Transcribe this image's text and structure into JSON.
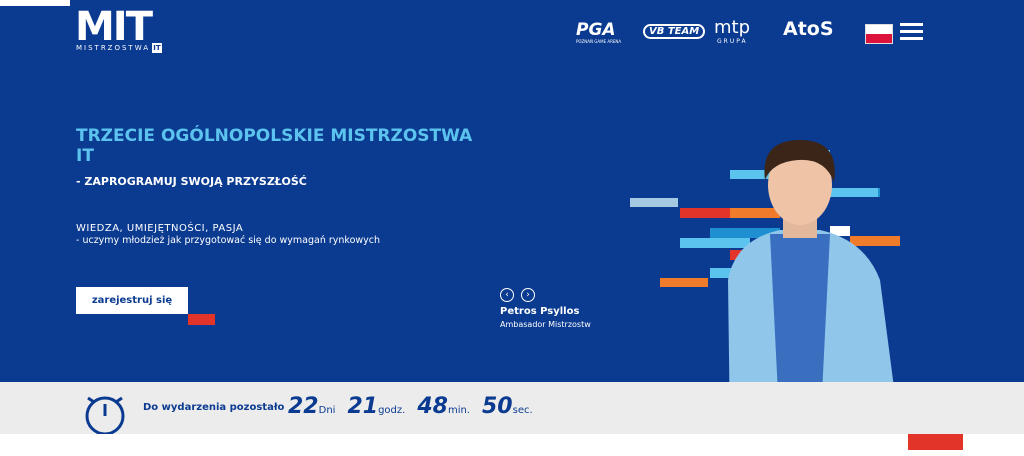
{
  "header": {
    "logo": "MIT",
    "logo_sub": "MISTRZOSTWA",
    "logo_badge": "IT",
    "partners": [
      "PGA",
      "VB TEAM",
      "mtp",
      "AtoS"
    ],
    "partner_subs": [
      "POZNAŃ GAME ARENA",
      "GRUPA"
    ]
  },
  "hero": {
    "title": "TRZECIE OGÓLNOPOLSKIE MISTRZOSTWA IT",
    "subtitle": "- ZAPROGRAMUJ SWOJĄ PRZYSZŁOŚĆ",
    "tagline": "WIEDZA, UMIEJĘTNOŚCI, PASJA",
    "description": "- uczymy młodzież jak przygotować się do wymagań rynkowych",
    "button": "zarejestruj się",
    "person_name": "Petros Psyllos",
    "person_role": "Ambasador Mistrzostw"
  },
  "countdown": {
    "label": "Do wydarzenia pozostało",
    "items": [
      {
        "value": "22",
        "unit": "Dni"
      },
      {
        "value": "21",
        "unit": "godz."
      },
      {
        "value": "48",
        "unit": "min."
      },
      {
        "value": "50",
        "unit": "sec."
      }
    ]
  }
}
